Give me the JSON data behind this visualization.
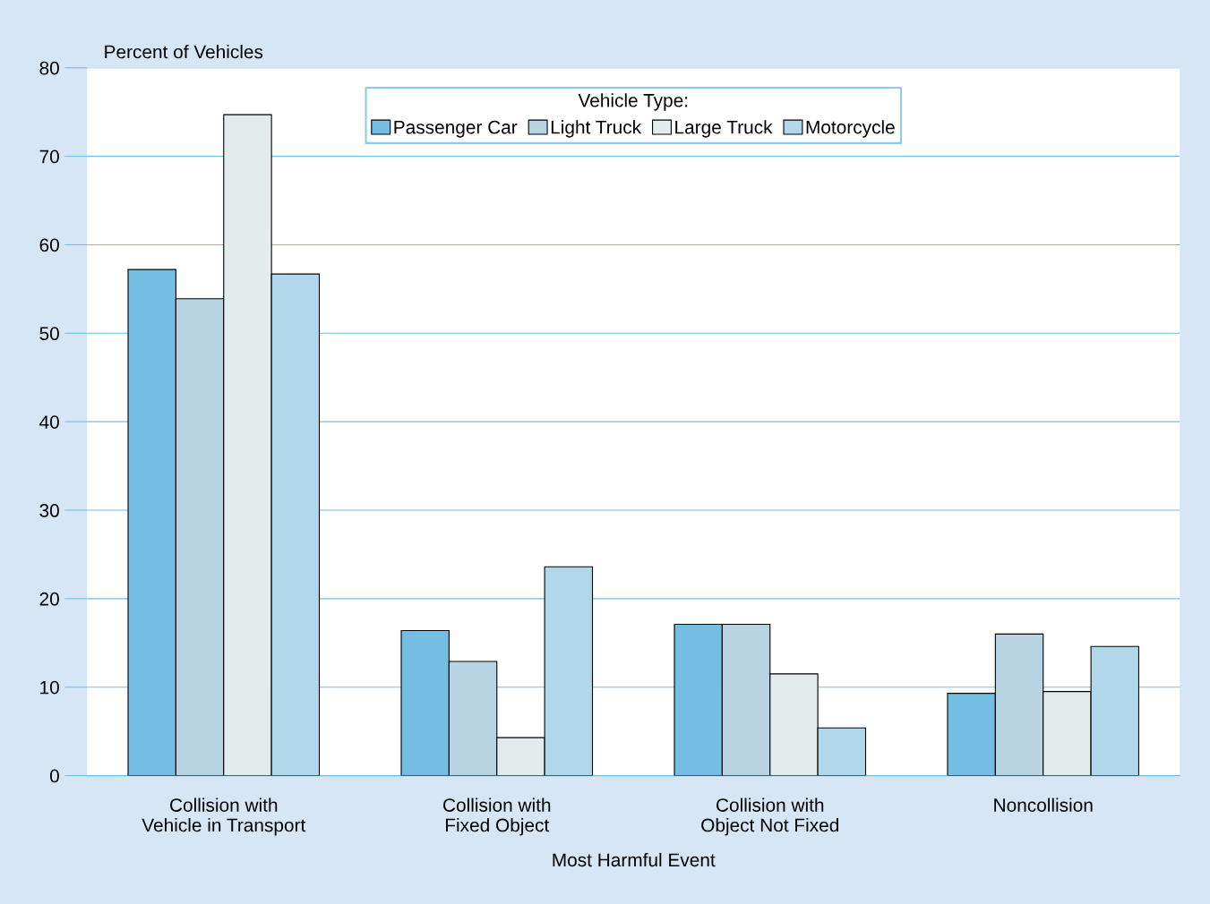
{
  "chart_data": {
    "type": "bar",
    "ylabel": "Percent of Vehicles",
    "xlabel": "Most Harmful Event",
    "legend_title": "Vehicle Type:",
    "categories": [
      "Collision with\nVehicle in Transport",
      "Collision with\nFixed Object",
      "Collision with\nObject Not Fixed",
      "Noncollision"
    ],
    "series": [
      {
        "name": "Passenger Car",
        "color": "#74bde3",
        "values": [
          57.2,
          16.4,
          17.1,
          9.3
        ]
      },
      {
        "name": "Light Truck",
        "color": "#b8d4e3",
        "values": [
          53.9,
          12.9,
          17.1,
          16.0
        ]
      },
      {
        "name": "Large Truck",
        "color": "#e3ecec",
        "values": [
          74.7,
          4.3,
          11.5,
          9.5
        ]
      },
      {
        "name": "Motorcycle",
        "color": "#b1d8ea",
        "values": [
          56.7,
          23.6,
          5.4,
          14.6
        ]
      }
    ],
    "ylim": [
      0,
      80
    ],
    "yticks": [
      0,
      10,
      20,
      30,
      40,
      50,
      60,
      70,
      80
    ],
    "grid": "y",
    "legend": "top"
  }
}
